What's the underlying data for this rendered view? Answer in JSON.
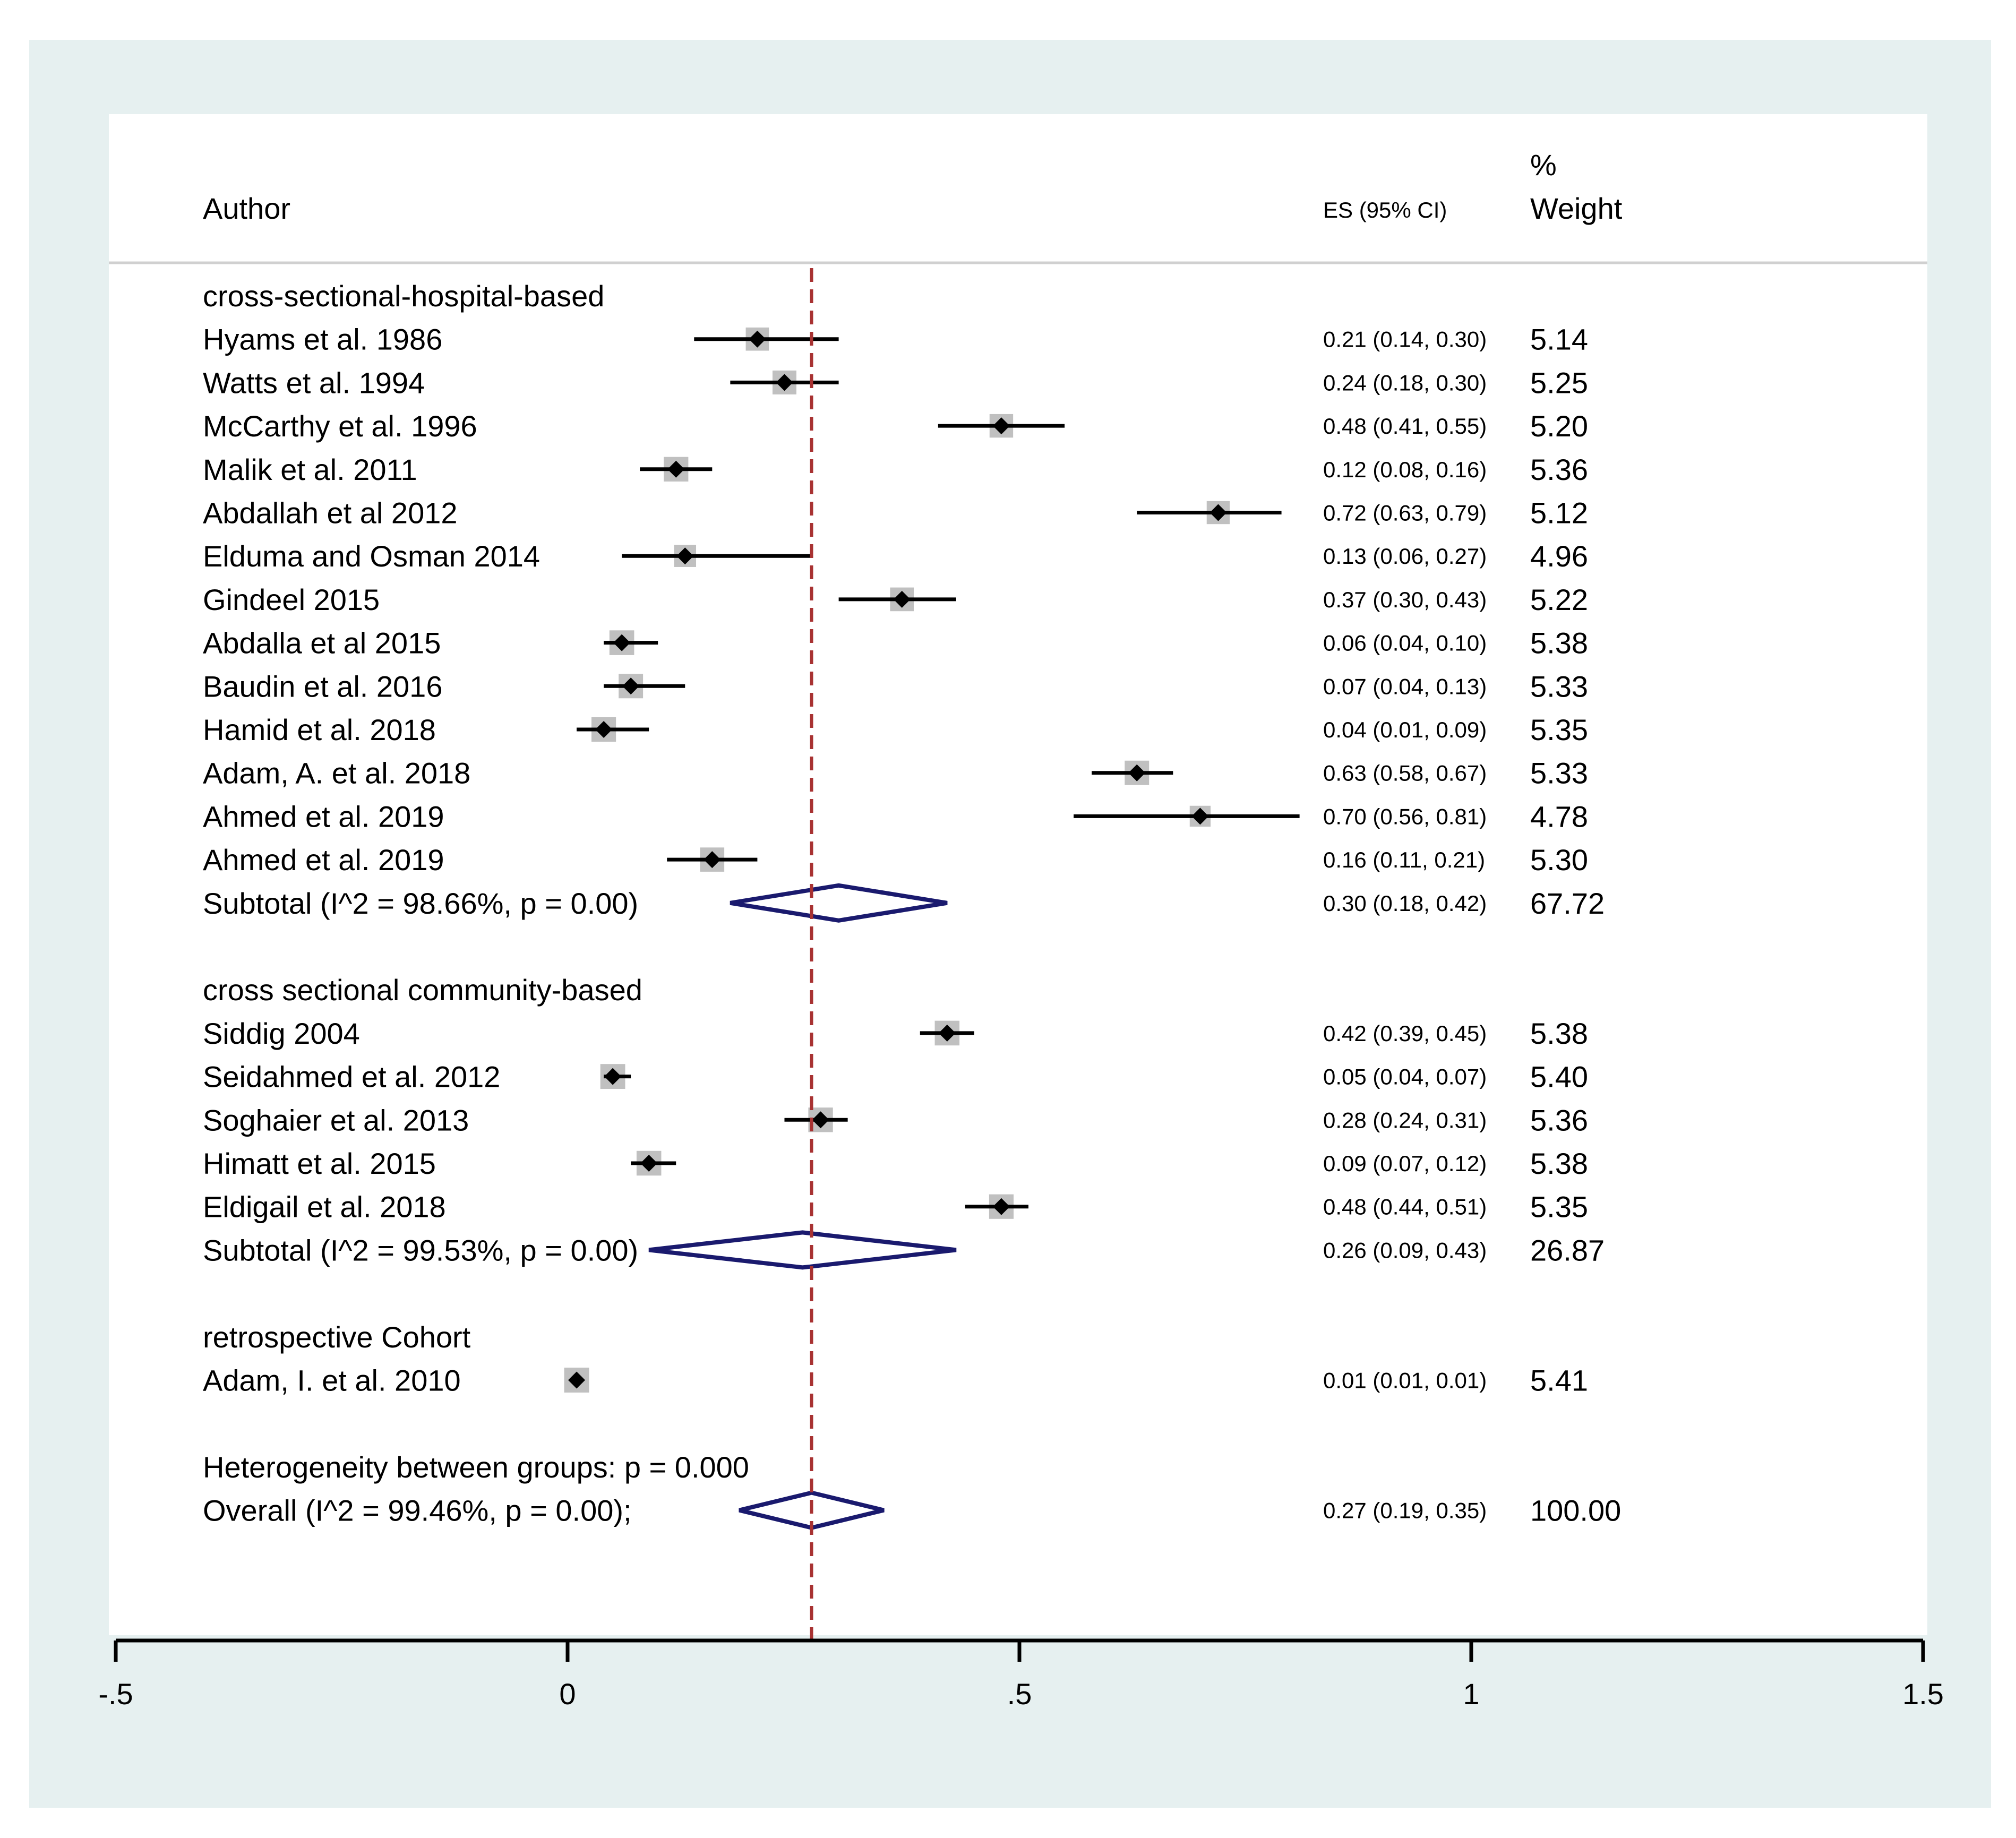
{
  "header": {
    "author_label": "Author",
    "es_label": "ES (95% CI)",
    "weight_label_top": "%",
    "weight_label_bottom": "Weight"
  },
  "colors": {
    "outer_background": "#e6f0f0",
    "plot_background": "#ffffff",
    "study_box": "#c0c0c0",
    "diamond": "#1a1a6e",
    "reference_line": "#a83232"
  },
  "chart_data": {
    "type": "forest",
    "effect_label": "ES (95% CI)",
    "weight_label": "% Weight",
    "reference_line": 0.27,
    "xlim": [
      -0.5,
      1.5
    ],
    "xticks": [
      -0.5,
      0,
      0.5,
      1,
      1.5
    ],
    "xtick_labels": [
      "-.5",
      "0",
      ".5",
      "1",
      "1.5"
    ],
    "groups": [
      {
        "name": "cross-sectional-hospital-based",
        "studies": [
          {
            "label": "Hyams et al. 1986",
            "es": 0.21,
            "lo": 0.14,
            "hi": 0.3,
            "ci_text": "0.21 (0.14, 0.30)",
            "weight": "5.14"
          },
          {
            "label": "Watts et al. 1994",
            "es": 0.24,
            "lo": 0.18,
            "hi": 0.3,
            "ci_text": "0.24 (0.18, 0.30)",
            "weight": "5.25"
          },
          {
            "label": "McCarthy et al. 1996",
            "es": 0.48,
            "lo": 0.41,
            "hi": 0.55,
            "ci_text": "0.48 (0.41, 0.55)",
            "weight": "5.20"
          },
          {
            "label": "Malik et al. 2011",
            "es": 0.12,
            "lo": 0.08,
            "hi": 0.16,
            "ci_text": "0.12 (0.08, 0.16)",
            "weight": "5.36"
          },
          {
            "label": "Abdallah et al 2012",
            "es": 0.72,
            "lo": 0.63,
            "hi": 0.79,
            "ci_text": "0.72 (0.63, 0.79)",
            "weight": "5.12"
          },
          {
            "label": "Elduma and Osman 2014",
            "es": 0.13,
            "lo": 0.06,
            "hi": 0.27,
            "ci_text": "0.13 (0.06, 0.27)",
            "weight": "4.96"
          },
          {
            "label": "Gindeel 2015",
            "es": 0.37,
            "lo": 0.3,
            "hi": 0.43,
            "ci_text": "0.37 (0.30, 0.43)",
            "weight": "5.22"
          },
          {
            "label": "Abdalla et al 2015",
            "es": 0.06,
            "lo": 0.04,
            "hi": 0.1,
            "ci_text": "0.06 (0.04, 0.10)",
            "weight": "5.38"
          },
          {
            "label": "Baudin et al. 2016",
            "es": 0.07,
            "lo": 0.04,
            "hi": 0.13,
            "ci_text": "0.07 (0.04, 0.13)",
            "weight": "5.33"
          },
          {
            "label": "Hamid et al. 2018",
            "es": 0.04,
            "lo": 0.01,
            "hi": 0.09,
            "ci_text": "0.04 (0.01, 0.09)",
            "weight": "5.35"
          },
          {
            "label": "Adam, A. et al. 2018",
            "es": 0.63,
            "lo": 0.58,
            "hi": 0.67,
            "ci_text": "0.63 (0.58, 0.67)",
            "weight": "5.33"
          },
          {
            "label": "Ahmed et al. 2019",
            "es": 0.7,
            "lo": 0.56,
            "hi": 0.81,
            "ci_text": "0.70 (0.56, 0.81)",
            "weight": "4.78"
          },
          {
            "label": "Ahmed et al. 2019",
            "es": 0.16,
            "lo": 0.11,
            "hi": 0.21,
            "ci_text": "0.16 (0.11, 0.21)",
            "weight": "5.30"
          }
        ],
        "subtotal": {
          "label": "Subtotal  (I^2 = 98.66%, p = 0.00)",
          "es": 0.3,
          "lo": 0.18,
          "hi": 0.42,
          "ci_text": "0.30 (0.18, 0.42)",
          "weight": "67.72"
        }
      },
      {
        "name": "cross sectional community-based",
        "studies": [
          {
            "label": "Siddig 2004",
            "es": 0.42,
            "lo": 0.39,
            "hi": 0.45,
            "ci_text": "0.42 (0.39, 0.45)",
            "weight": "5.38"
          },
          {
            "label": "Seidahmed et al. 2012",
            "es": 0.05,
            "lo": 0.04,
            "hi": 0.07,
            "ci_text": "0.05 (0.04, 0.07)",
            "weight": "5.40"
          },
          {
            "label": "Soghaier et al. 2013",
            "es": 0.28,
            "lo": 0.24,
            "hi": 0.31,
            "ci_text": "0.28 (0.24, 0.31)",
            "weight": "5.36"
          },
          {
            "label": "Himatt et al. 2015",
            "es": 0.09,
            "lo": 0.07,
            "hi": 0.12,
            "ci_text": "0.09 (0.07, 0.12)",
            "weight": "5.38"
          },
          {
            "label": "Eldigail et al. 2018",
            "es": 0.48,
            "lo": 0.44,
            "hi": 0.51,
            "ci_text": "0.48 (0.44, 0.51)",
            "weight": "5.35"
          }
        ],
        "subtotal": {
          "label": "Subtotal  (I^2 = 99.53%, p = 0.00)",
          "es": 0.26,
          "lo": 0.09,
          "hi": 0.43,
          "ci_text": "0.26 (0.09, 0.43)",
          "weight": "26.87"
        }
      },
      {
        "name": "retrospective Cohort",
        "studies": [
          {
            "label": "Adam, I. et al. 2010",
            "es": 0.01,
            "lo": 0.01,
            "hi": 0.01,
            "ci_text": "0.01 (0.01, 0.01)",
            "weight": "5.41"
          }
        ],
        "subtotal": null
      }
    ],
    "heterogeneity": "Heterogeneity between groups: p = 0.000",
    "overall": {
      "label": "Overall  (I^2 = 99.46%, p = 0.00);",
      "es": 0.27,
      "lo": 0.19,
      "hi": 0.35,
      "ci_text": "0.27 (0.19, 0.35)",
      "weight": "100.00"
    }
  }
}
